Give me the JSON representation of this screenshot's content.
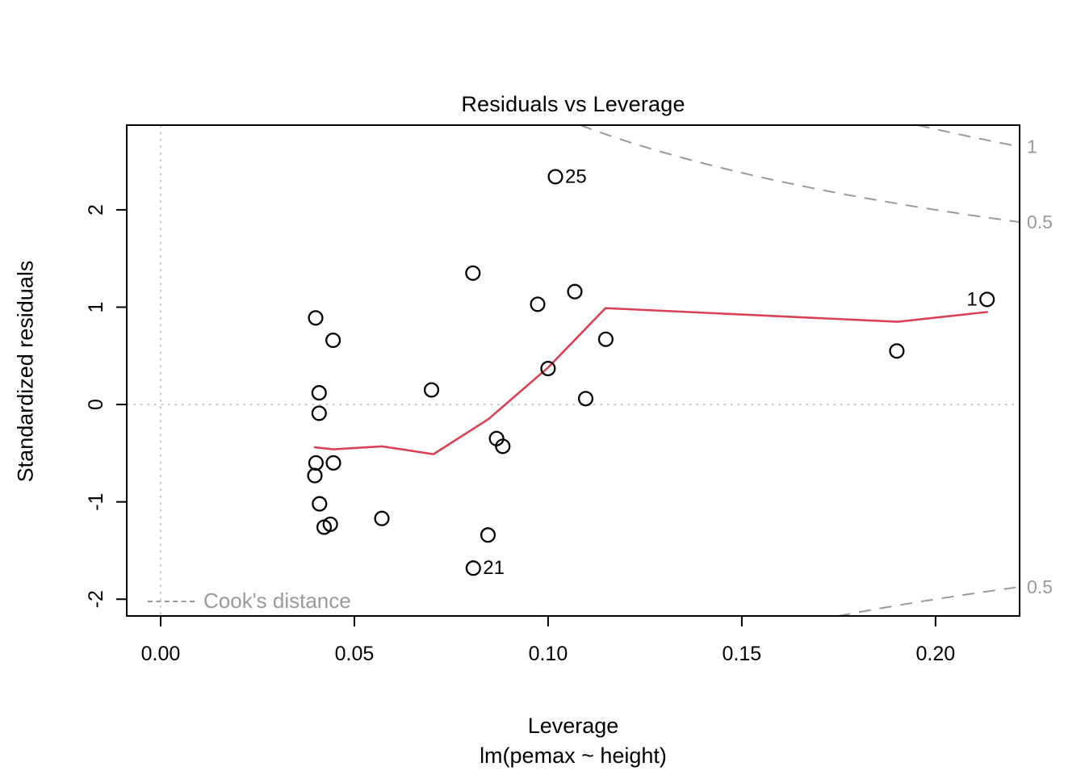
{
  "chart_data": {
    "type": "scatter",
    "title": "Residuals vs Leverage",
    "xlabel": "Leverage",
    "xlabel_sub": "lm(pemax ~ height)",
    "ylabel": "Standardized residuals",
    "xlim": [
      -0.00875,
      0.2217
    ],
    "ylim": [
      -2.172,
      2.87
    ],
    "x_ticks": [
      0.0,
      0.05,
      0.1,
      0.15,
      0.2
    ],
    "x_tick_labels": [
      "0.00",
      "0.05",
      "0.10",
      "0.15",
      "0.20"
    ],
    "y_ticks": [
      -2,
      -1,
      0,
      1,
      2
    ],
    "y_tick_labels": [
      "-2",
      "-1",
      "0",
      "1",
      "2"
    ],
    "grid": false,
    "legend_label": "Cook's distance",
    "legend_position": "bottom-left-inside",
    "points": [
      {
        "leverage": 0.04,
        "std_resid": 0.89
      },
      {
        "leverage": 0.0445,
        "std_resid": 0.66
      },
      {
        "leverage": 0.0409,
        "std_resid": 0.12
      },
      {
        "leverage": 0.0409,
        "std_resid": -0.09
      },
      {
        "leverage": 0.0699,
        "std_resid": 0.15
      },
      {
        "leverage": 0.0401,
        "std_resid": -0.6
      },
      {
        "leverage": 0.0446,
        "std_resid": -0.6
      },
      {
        "leverage": 0.0398,
        "std_resid": -0.73
      },
      {
        "leverage": 0.041,
        "std_resid": -1.02
      },
      {
        "leverage": 0.0422,
        "std_resid": -1.26
      },
      {
        "leverage": 0.0438,
        "std_resid": -1.23
      },
      {
        "leverage": 0.0571,
        "std_resid": -1.17
      },
      {
        "leverage": 0.0845,
        "std_resid": -1.34
      },
      {
        "leverage": 0.0807,
        "std_resid": -1.68,
        "label": "21",
        "label_side": "right"
      },
      {
        "leverage": 0.0867,
        "std_resid": -0.35
      },
      {
        "leverage": 0.0883,
        "std_resid": -0.43
      },
      {
        "leverage": 0.0806,
        "std_resid": 1.35
      },
      {
        "leverage": 0.0973,
        "std_resid": 1.03
      },
      {
        "leverage": 0.1069,
        "std_resid": 1.16
      },
      {
        "leverage": 0.1149,
        "std_resid": 0.67
      },
      {
        "leverage": 0.1,
        "std_resid": 0.37
      },
      {
        "leverage": 0.1097,
        "std_resid": 0.06
      },
      {
        "leverage": 0.1019,
        "std_resid": 2.34,
        "label": "25",
        "label_side": "right"
      },
      {
        "leverage": 0.19,
        "std_resid": 0.55
      },
      {
        "leverage": 0.2133,
        "std_resid": 1.08,
        "label": "1",
        "label_side": "left"
      }
    ],
    "smooth_line": [
      [
        0.0398,
        -0.44
      ],
      [
        0.0446,
        -0.46
      ],
      [
        0.0571,
        -0.43
      ],
      [
        0.0704,
        -0.51
      ],
      [
        0.0846,
        -0.15
      ],
      [
        0.1,
        0.38
      ],
      [
        0.1148,
        0.99
      ],
      [
        0.1902,
        0.85
      ],
      [
        0.2133,
        0.95
      ]
    ],
    "reference_lines": {
      "horizontal_at": 0,
      "vertical_at": 0,
      "style": "dotted"
    },
    "cook_contours": {
      "model_params_p": 2,
      "curves": [
        {
          "level": 1,
          "sign": 1,
          "label": "1"
        },
        {
          "level": 0.5,
          "sign": 1,
          "label": "0.5"
        },
        {
          "level": 1,
          "sign": -1,
          "label": "1"
        },
        {
          "level": 0.5,
          "sign": -1,
          "label": "0.5"
        }
      ]
    },
    "colors": {
      "point_stroke": "#000000",
      "smooth_line": "#d94255",
      "cook_line": "#999999",
      "cook_label_text": "#9a9a9a",
      "reference_line": "#c6c6c6",
      "legend_text": "#9a9a9a",
      "axis_text": "#000000",
      "border": "#000000",
      "background": "#ffffff"
    }
  }
}
